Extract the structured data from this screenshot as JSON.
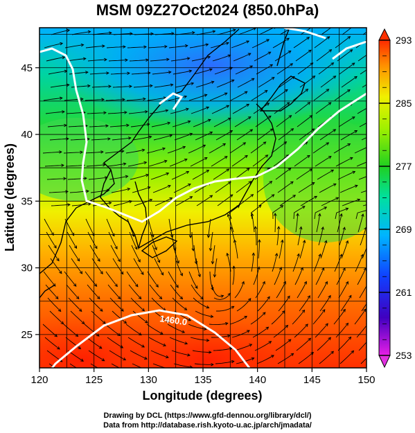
{
  "title": "MSM 09Z27Oct2024 (850.0hPa)",
  "xlabel": "Longitude (degrees)",
  "ylabel": "Latitude  (degrees)",
  "x_ticks": [
    "120",
    "125",
    "130",
    "135",
    "140",
    "145",
    "150"
  ],
  "y_ticks": [
    "25",
    "30",
    "35",
    "40",
    "45"
  ],
  "colorbar": {
    "min": 253,
    "max": 293,
    "labels": [
      "293",
      "285",
      "277",
      "269",
      "261",
      "253"
    ]
  },
  "contour_label": "1460.0",
  "credit_line1": "Drawing by DCL (https://www.gfd-dennou.org/library/dcl/)",
  "credit_line2": "Data from http://database.rish.kyoto-u.ac.jp/arch/jmadata/"
}
